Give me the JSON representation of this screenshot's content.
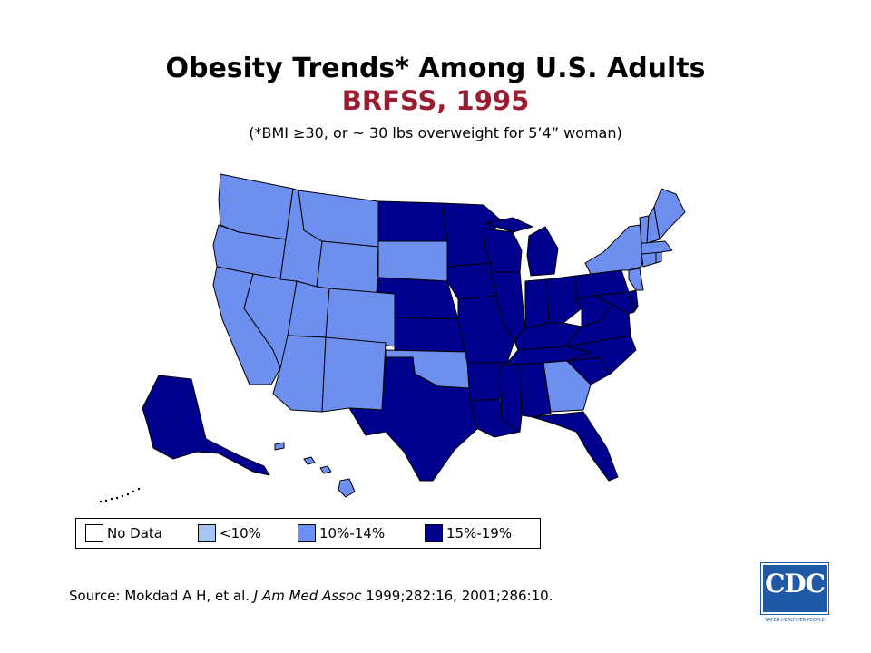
{
  "header": {
    "title": "Obesity Trends* Among U.S. Adults",
    "subtitle": "BRFSS, 1995",
    "note": "(*BMI ≥30, or ~ 30 lbs overweight for 5’4” woman)"
  },
  "colors": {
    "subtitle": "#9b1b30",
    "no_data": "#ffffff",
    "lt10": "#a7c4f2",
    "c10_14": "#6d8ff0",
    "c15_19": "#00008f",
    "border": "#000000"
  },
  "legend": {
    "items": [
      {
        "label": "No Data",
        "category": "no_data"
      },
      {
        "label": "<10%",
        "category": "lt10"
      },
      {
        "label": "10%-14%",
        "category": "c10_14"
      },
      {
        "label": "15%-19%",
        "category": "c15_19"
      }
    ]
  },
  "states": {
    "WA": "c10_14",
    "OR": "c10_14",
    "CA": "c10_14",
    "NV": "c10_14",
    "ID": "c10_14",
    "MT": "c10_14",
    "WY": "c10_14",
    "UT": "c10_14",
    "AZ": "c10_14",
    "CO": "c10_14",
    "NM": "c10_14",
    "SD": "c10_14",
    "OK": "c10_14",
    "GA": "c10_14",
    "NY": "c10_14",
    "VT": "c10_14",
    "NH": "c10_14",
    "ME": "c10_14",
    "MA": "c10_14",
    "CT": "c10_14",
    "RI": "c10_14",
    "NJ": "c10_14",
    "HI": "c10_14",
    "ND": "c15_19",
    "MN": "c15_19",
    "WI": "c15_19",
    "MI": "c15_19",
    "NE": "c15_19",
    "KS": "c15_19",
    "IA": "c15_19",
    "MO": "c15_19",
    "IL": "c15_19",
    "IN": "c15_19",
    "OH": "c15_19",
    "KY": "c15_19",
    "WV": "c15_19",
    "VA": "c15_19",
    "PA": "c15_19",
    "MD": "c15_19",
    "DE": "c15_19",
    "NC": "c15_19",
    "SC": "c15_19",
    "TN": "c15_19",
    "AR": "c15_19",
    "LA": "c15_19",
    "MS": "c15_19",
    "AL": "c15_19",
    "FL": "c15_19",
    "TX": "c15_19",
    "AK": "c15_19"
  },
  "source": {
    "prefix": "Source: Mokdad A H, et al. ",
    "journal": "J Am Med Assoc",
    "suffix": " 1999;282:16, 2001;286:10."
  },
  "logo": {
    "text": "CDC",
    "tagline": "SAFER·HEALTHIER·PEOPLE"
  }
}
